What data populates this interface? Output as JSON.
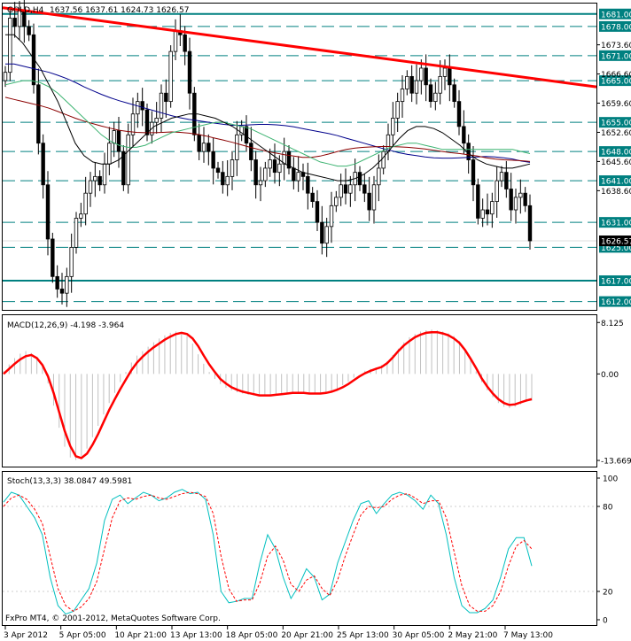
{
  "header": {
    "symbol": "GOLD,H4",
    "ohlc": "1637.56 1637.61 1624.73 1626.57"
  },
  "footer": {
    "copyright": "FxPro MT4, © 2001-2012, MetaQuotes Software Corp."
  },
  "colors": {
    "background": "#ffffff",
    "frame": "#000000",
    "level_line": "#008080",
    "trendline": "#ff0000",
    "macd_signal": "#ff0000",
    "macd_hist": "#c0c0c0",
    "stoch_main": "#00bfbf",
    "stoch_signal": "#ff0000",
    "sma_blue": "#00008b",
    "sma_red": "#8b0000",
    "sma_green": "#3cb371",
    "bollinger": "#000000",
    "candle": "#000000"
  },
  "chart_data": [
    {
      "type": "candlestick",
      "name": "price",
      "symbol": "GOLD",
      "timeframe": "H4",
      "ylim": [
        1610.0,
        1683.5
      ],
      "y_ticks": [
        1673.6,
        1666.6,
        1659.6,
        1652.6,
        1645.6,
        1638.6
      ],
      "levels": [
        1681.0,
        1678.0,
        1671.0,
        1665.0,
        1655.0,
        1648.0,
        1641.0,
        1631.0,
        1625.0,
        1617.0,
        1612.0
      ],
      "level_labels": [
        "1681.00",
        "1678.00",
        "1671.00",
        "1665.00",
        "1655.00",
        "1648.00",
        "1641.00",
        "1631.00",
        "1625.00",
        "1617.00",
        "1612.00"
      ],
      "last_price": 1626.57,
      "last_price_label": "1626.57",
      "trendline": {
        "from": [
          0,
          1682.5
        ],
        "to": [
          165,
          1663.5
        ]
      },
      "closes": [
        1667,
        1680,
        1678,
        1682,
        1678,
        1676,
        1664,
        1650,
        1640,
        1627,
        1618,
        1615,
        1614,
        1618,
        1625,
        1632,
        1633,
        1638,
        1641,
        1642,
        1640,
        1645,
        1650,
        1653,
        1648,
        1640,
        1652,
        1657,
        1660,
        1658,
        1652,
        1655,
        1656,
        1662,
        1660,
        1672,
        1677,
        1676,
        1672,
        1662,
        1652,
        1648,
        1650,
        1648,
        1644,
        1643,
        1640,
        1642,
        1646,
        1652,
        1654,
        1650,
        1646,
        1640,
        1641,
        1644,
        1646,
        1643,
        1645,
        1648,
        1644,
        1641,
        1643,
        1642,
        1638,
        1636,
        1631,
        1626,
        1630,
        1635,
        1637,
        1640,
        1638,
        1640,
        1643,
        1640,
        1638,
        1634,
        1640,
        1644,
        1648,
        1652,
        1656,
        1660,
        1663,
        1666,
        1662,
        1665,
        1668,
        1664,
        1660,
        1662,
        1666,
        1668,
        1664,
        1660,
        1654,
        1650,
        1646,
        1640,
        1632,
        1634,
        1633,
        1636,
        1641,
        1643,
        1639,
        1634,
        1637,
        1638,
        1635,
        1626.57
      ],
      "series": [
        {
          "name": "sma_blue",
          "values": [
            1669,
            1669,
            1668.5,
            1668,
            1667.5,
            1667,
            1666.3,
            1665.5,
            1664.6,
            1663.5,
            1662.6,
            1661.7,
            1660.9,
            1660.2,
            1659.6,
            1659.0,
            1658.4,
            1657.8,
            1657.2,
            1656.6,
            1656.1,
            1655.7,
            1655.4,
            1655.1,
            1654.8,
            1654.5,
            1654.3,
            1654.3,
            1654.4,
            1654.5,
            1654.5,
            1654.4,
            1654.2,
            1653.9,
            1653.5,
            1653.1,
            1652.7,
            1652.3,
            1651.8,
            1651.2,
            1650.6,
            1650.0,
            1649.4,
            1648.8,
            1648.3,
            1647.7,
            1647.3,
            1647.0,
            1646.7,
            1646.5,
            1646.4,
            1646.4,
            1646.5,
            1646.6,
            1646.7,
            1646.8,
            1646.7,
            1646.5,
            1646.2,
            1645.7,
            1645.4
          ]
        },
        {
          "name": "sma_red",
          "values": [
            1661,
            1660.5,
            1660,
            1659.5,
            1659,
            1658.4,
            1657.6,
            1656.8,
            1656,
            1655.3,
            1654.7,
            1654.1,
            1653.6,
            1653.1,
            1652.8,
            1652.6,
            1652.5,
            1652.5,
            1652.6,
            1652.7,
            1652.6,
            1652.4,
            1652.1,
            1651.7,
            1651.2,
            1650.7,
            1650.2,
            1649.6,
            1649.0,
            1648.5,
            1648.0,
            1647.6,
            1647.2,
            1646.9,
            1646.6,
            1646.6,
            1646.9,
            1647.4,
            1648.0,
            1648.5,
            1648.8,
            1649.0,
            1649.1,
            1649.2,
            1649.2,
            1649.1,
            1649.0,
            1648.8,
            1648.6,
            1648.3,
            1648.0,
            1647.7,
            1647.5,
            1647.2,
            1646.9,
            1646.5,
            1646.2,
            1646.0,
            1645.9,
            1645.8,
            1645.6
          ]
        },
        {
          "name": "sma_green",
          "values": [
            1664,
            1664.5,
            1665,
            1665,
            1664.5,
            1663.5,
            1662,
            1660,
            1658,
            1656,
            1654,
            1652,
            1650.5,
            1649.5,
            1649,
            1649,
            1649.5,
            1650.5,
            1651.5,
            1652.5,
            1653,
            1653.5,
            1654,
            1654.5,
            1655,
            1655,
            1654.5,
            1654,
            1653.5,
            1652.5,
            1651.5,
            1650.5,
            1649.5,
            1648.5,
            1647.5,
            1646.5,
            1645.5,
            1645,
            1644.5,
            1644.5,
            1645,
            1646,
            1647,
            1648,
            1649,
            1649.5,
            1650,
            1650,
            1649.5,
            1649,
            1648.5,
            1648.5,
            1648.5,
            1648.5,
            1648.5,
            1648.5,
            1648.5,
            1648.5,
            1648.5,
            1648,
            1647.5
          ]
        },
        {
          "name": "bollinger_mid",
          "values": [
            1676,
            1676,
            1674,
            1671,
            1668,
            1664,
            1660,
            1655,
            1650,
            1647,
            1645.5,
            1645,
            1645,
            1646,
            1648,
            1650,
            1652,
            1654,
            1655,
            1656,
            1656.5,
            1657,
            1657,
            1656.5,
            1656,
            1655,
            1654,
            1652.5,
            1651,
            1649.5,
            1648,
            1646.5,
            1645,
            1644,
            1643,
            1642.5,
            1642,
            1641.5,
            1641,
            1641,
            1641.5,
            1642.5,
            1644,
            1646,
            1648.5,
            1651,
            1653,
            1654,
            1654,
            1653.5,
            1652.5,
            1651,
            1649.5,
            1647.5,
            1646,
            1645,
            1644.5,
            1644,
            1644,
            1644.5,
            1645
          ]
        }
      ],
      "series_xstep": 2
    },
    {
      "type": "bar",
      "name": "MACD",
      "label": "MACD(12,26,9) -4.198 -3.964",
      "ylim": [
        -14.5,
        9.0
      ],
      "y_ticks": [
        8.125,
        0.0,
        -13.669
      ],
      "y_tick_labels": [
        "8.125",
        "0.00",
        "-13.669"
      ],
      "values": [
        0.5,
        1.5,
        2.5,
        3.2,
        3.6,
        3.3,
        2.5,
        1.2,
        -1.5,
        -5.0,
        -8.5,
        -11.5,
        -13.2,
        -13.6,
        -13.0,
        -11.8,
        -10.0,
        -8.2,
        -6.4,
        -4.6,
        -3.0,
        -1.3,
        0.3,
        1.8,
        2.9,
        3.6,
        4.3,
        5.0,
        5.6,
        6.1,
        6.5,
        6.7,
        6.6,
        6.0,
        4.8,
        3.1,
        1.6,
        0.3,
        -0.8,
        -1.6,
        -2.2,
        -2.6,
        -2.9,
        -3.1,
        -3.3,
        -3.4,
        -3.5,
        -3.5,
        -3.4,
        -3.2,
        -3.1,
        -3.0,
        -2.9,
        -3.0,
        -3.1,
        -3.2,
        -3.2,
        -3.1,
        -2.9,
        -2.6,
        -2.3,
        -1.8,
        -1.2,
        -0.6,
        0.0,
        0.5,
        0.8,
        1.0,
        1.4,
        2.0,
        3.0,
        4.0,
        5.0,
        5.8,
        6.3,
        6.7,
        6.9,
        7.0,
        6.9,
        6.7,
        6.4,
        6.0,
        5.2,
        3.9,
        2.2,
        0.4,
        -1.3,
        -2.6,
        -3.7,
        -4.6,
        -5.2,
        -5.4,
        -5.2,
        -4.8,
        -4.4,
        -4.2
      ],
      "signal": [
        0.0,
        0.8,
        1.6,
        2.3,
        2.8,
        3.0,
        2.5,
        1.4,
        -0.4,
        -3.0,
        -6.0,
        -9.0,
        -11.4,
        -13.0,
        -13.3,
        -12.6,
        -11.2,
        -9.5,
        -7.6,
        -5.7,
        -4.0,
        -2.4,
        -0.9,
        0.6,
        1.8,
        2.7,
        3.5,
        4.2,
        4.8,
        5.4,
        5.9,
        6.3,
        6.5,
        6.3,
        5.6,
        4.4,
        2.9,
        1.5,
        0.3,
        -0.8,
        -1.5,
        -2.1,
        -2.5,
        -2.8,
        -3.0,
        -3.2,
        -3.4,
        -3.4,
        -3.4,
        -3.3,
        -3.2,
        -3.1,
        -3.0,
        -3.0,
        -3.0,
        -3.1,
        -3.1,
        -3.1,
        -3.0,
        -2.8,
        -2.5,
        -2.1,
        -1.6,
        -1.0,
        -0.4,
        0.1,
        0.5,
        0.8,
        1.1,
        1.7,
        2.6,
        3.6,
        4.5,
        5.2,
        5.8,
        6.2,
        6.5,
        6.6,
        6.6,
        6.4,
        6.1,
        5.6,
        4.9,
        3.8,
        2.4,
        0.9,
        -0.7,
        -2.0,
        -3.1,
        -4.0,
        -4.6,
        -4.9,
        -4.8,
        -4.5,
        -4.2,
        -4.0
      ],
      "xstep": 6.2
    },
    {
      "type": "line",
      "name": "Stochastic",
      "label": "Stoch(13,3,3) 38.0847 49.5981",
      "ylim": [
        0,
        100
      ],
      "y_ticks": [
        100,
        80,
        20,
        0
      ],
      "y_tick_labels": [
        "100",
        "80",
        "20",
        "0"
      ],
      "series": [
        {
          "name": "main",
          "values": [
            83,
            90,
            88,
            80,
            72,
            60,
            30,
            10,
            4,
            6,
            14,
            22,
            40,
            70,
            85,
            88,
            82,
            86,
            90,
            88,
            84,
            86,
            90,
            92,
            89,
            90,
            85,
            60,
            20,
            12,
            13,
            15,
            15,
            40,
            60,
            50,
            30,
            15,
            24,
            36,
            30,
            14,
            18,
            40,
            55,
            70,
            82,
            84,
            75,
            82,
            88,
            90,
            88,
            84,
            78,
            88,
            82,
            60,
            30,
            10,
            5,
            5,
            8,
            14,
            30,
            50,
            58,
            58,
            38
          ]
        },
        {
          "name": "signal",
          "values": [
            80,
            86,
            88,
            85,
            78,
            68,
            45,
            22,
            10,
            6,
            9,
            15,
            27,
            50,
            72,
            84,
            86,
            85,
            87,
            88,
            86,
            85,
            87,
            89,
            90,
            89,
            87,
            75,
            45,
            22,
            13,
            14,
            14,
            26,
            45,
            52,
            42,
            25,
            20,
            28,
            31,
            22,
            17,
            28,
            45,
            60,
            74,
            80,
            79,
            80,
            85,
            88,
            89,
            86,
            82,
            84,
            84,
            72,
            48,
            24,
            10,
            6,
            6,
            10,
            20,
            38,
            52,
            56,
            50
          ]
        }
      ],
      "xstep": 9
    }
  ],
  "time_axis": {
    "labels": [
      "3 Apr 2012",
      "5 Apr 05:00",
      "10 Apr 21:00",
      "13 Apr 13:00",
      "18 Apr 05:00",
      "20 Apr 21:00",
      "25 Apr 13:00",
      "30 Apr 05:00",
      "2 May 21:00",
      "7 May 13:00"
    ]
  }
}
